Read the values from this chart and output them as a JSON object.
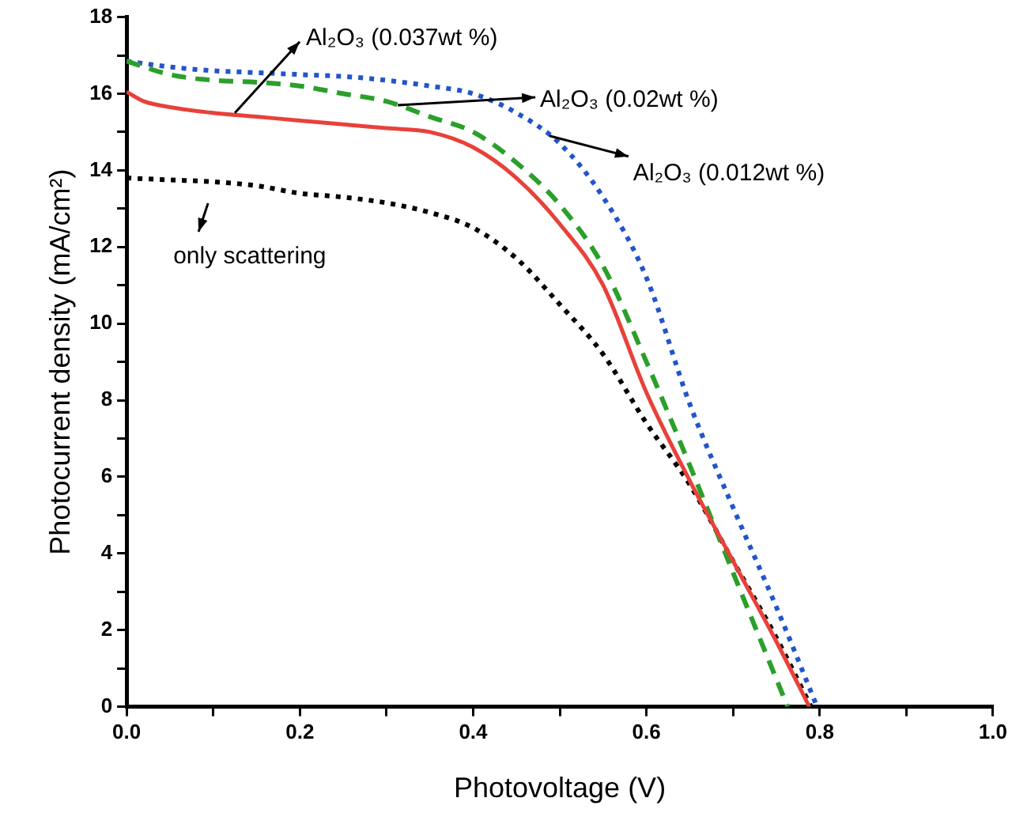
{
  "chart_data": {
    "type": "line",
    "xlabel": "Photovoltage (V)",
    "ylabel": "Photocurrent density (mA/cm²)",
    "xlim": [
      0,
      1
    ],
    "ylim": [
      0,
      18
    ],
    "xticks": [
      {
        "value": 0,
        "label": "0.0"
      },
      {
        "value": 0.1,
        "label": null
      },
      0.2,
      {
        "value": 0.3,
        "label": null
      },
      0.4,
      {
        "value": 0.5,
        "label": null
      },
      0.6,
      {
        "value": 0.7,
        "label": null
      },
      0.8,
      {
        "value": 0.9,
        "label": null
      },
      {
        "value": 1,
        "label": "1.0"
      }
    ],
    "yticks": [
      0,
      {
        "value": 1,
        "label": null
      },
      2,
      {
        "value": 3,
        "label": null
      },
      4,
      {
        "value": 5,
        "label": null
      },
      6,
      {
        "value": 7,
        "label": null
      },
      8,
      {
        "value": 9,
        "label": null
      },
      10,
      {
        "value": 11,
        "label": null
      },
      12,
      {
        "value": 13,
        "label": null
      },
      14,
      {
        "value": 15,
        "label": null
      },
      16,
      {
        "value": 17,
        "label": null
      },
      18
    ],
    "grid": false,
    "marker": "none",
    "annotations": [
      {
        "text": "Al₂O₃ (0.037wt %)",
        "x": 0.125,
        "y": 15.5
      },
      {
        "text": "Al₂O₃ (0.02wt %)",
        "x": 0.313,
        "y": 15.7
      },
      {
        "text": "Al₂O₃ (0.012wt %)",
        "x": 0.488,
        "y": 14.9
      },
      "only scattering"
    ],
    "series": [
      {
        "color": "#e8413a",
        "line_style": "solid",
        "x": [
          0,
          0.02,
          0.05,
          0.1,
          0.15,
          0.2,
          0.25,
          0.3,
          0.35,
          0.4,
          0.45,
          0.5,
          0.55,
          0.6,
          0.65,
          0.7,
          0.75,
          0.788
        ],
        "values": [
          16.05,
          15.8,
          15.65,
          15.5,
          15.4,
          15.3,
          15.2,
          15.1,
          15.0,
          14.6,
          13.8,
          12.6,
          11.0,
          8.2,
          5.9,
          3.8,
          1.7,
          0
        ]
      },
      {
        "color": "#2aa02a",
        "line_style": "dashed",
        "x": [
          0,
          0.05,
          0.1,
          0.15,
          0.2,
          0.25,
          0.3,
          0.35,
          0.4,
          0.45,
          0.5,
          0.55,
          0.6,
          0.65,
          0.7,
          0.763
        ],
        "values": [
          16.85,
          16.5,
          16.35,
          16.3,
          16.2,
          16.0,
          15.8,
          15.4,
          15.0,
          14.2,
          13.1,
          11.5,
          9.0,
          6.3,
          3.5,
          0
        ]
      },
      {
        "color": "#2255cc",
        "line_style": "dotted",
        "x": [
          0,
          0.05,
          0.1,
          0.15,
          0.2,
          0.25,
          0.3,
          0.35,
          0.4,
          0.45,
          0.5,
          0.55,
          0.6,
          0.65,
          0.7,
          0.75,
          0.797
        ],
        "values": [
          16.85,
          16.7,
          16.6,
          16.55,
          16.5,
          16.45,
          16.35,
          16.2,
          16.0,
          15.5,
          14.7,
          13.3,
          11.2,
          7.9,
          5.2,
          2.6,
          0
        ]
      },
      {
        "color": "#000000",
        "line_style": "dotted",
        "x": [
          0,
          0.05,
          0.1,
          0.15,
          0.2,
          0.25,
          0.3,
          0.35,
          0.4,
          0.45,
          0.5,
          0.55,
          0.6,
          0.65,
          0.7,
          0.75,
          0.79
        ],
        "values": [
          13.8,
          13.75,
          13.7,
          13.6,
          13.4,
          13.3,
          13.15,
          12.9,
          12.5,
          11.7,
          10.5,
          9.2,
          7.4,
          5.8,
          3.8,
          1.8,
          0
        ]
      }
    ]
  }
}
